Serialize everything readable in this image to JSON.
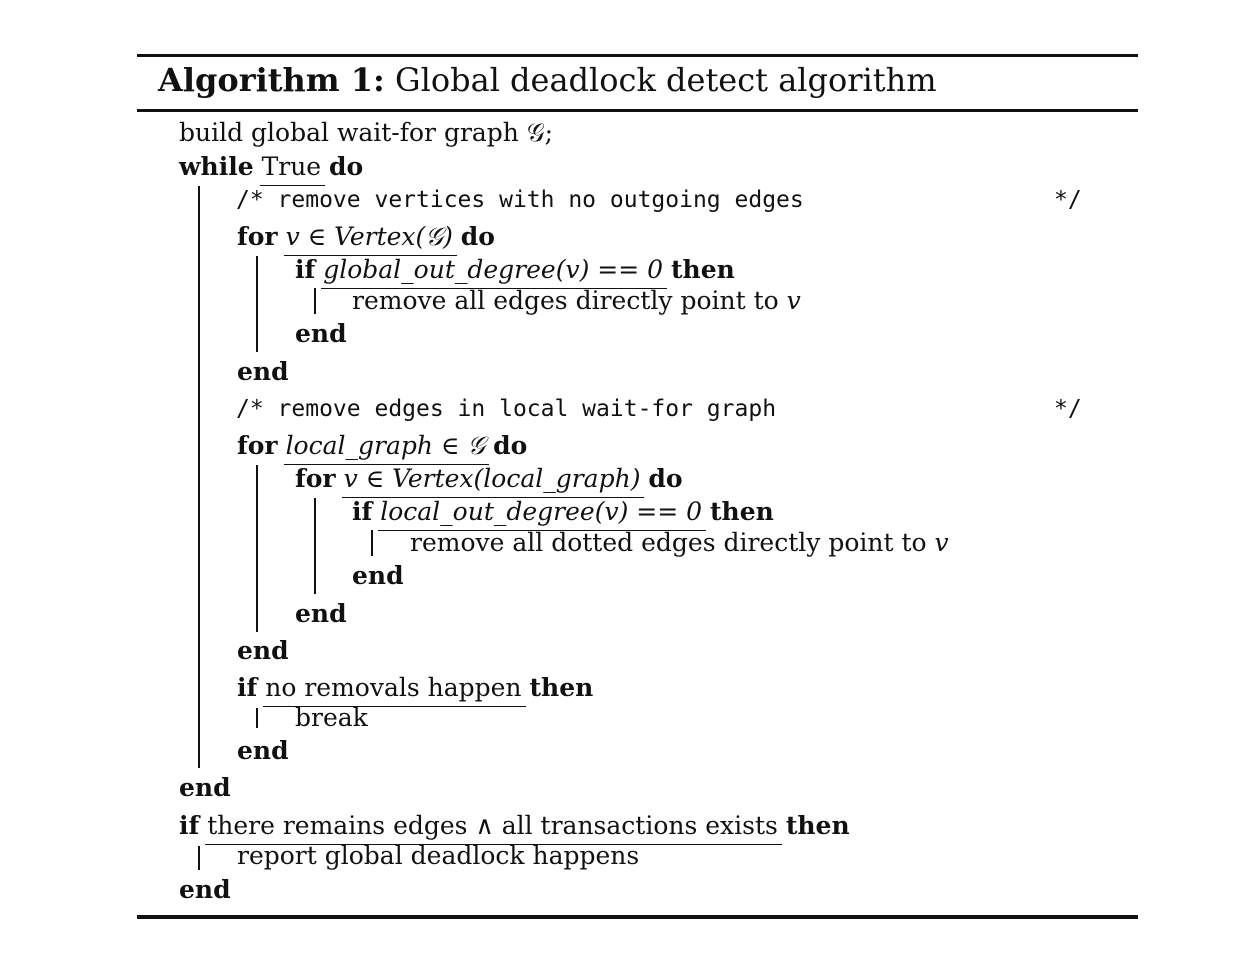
{
  "algorithm": {
    "label": "Algorithm 1:",
    "title": "Global deadlock detect algorithm",
    "lines": {
      "l1": "build global wait-for graph 𝒢;",
      "while_kw": "while",
      "while_cond": "True",
      "while_do": "do",
      "comment1": "/* remove vertices with no outgoing edges",
      "comment1_end": "*/",
      "for1_kw": "for",
      "for1_cond": "v ∈ Vertex(𝒢)",
      "for1_do": "do",
      "if1_kw": "if",
      "if1_cond": "global_out_degree(v) == 0",
      "if1_then": "then",
      "stmt1": "remove all edges directly point to ",
      "stmt1_var": "v",
      "end_if1": "end",
      "end_for1": "end",
      "comment2": "/* remove edges in local wait-for graph",
      "comment2_end": "*/",
      "for2_kw": "for",
      "for2_cond": "local_graph ∈ 𝒢",
      "for2_do": "do",
      "for3_kw": "for",
      "for3_cond": "v ∈ Vertex(local_graph)",
      "for3_do": "do",
      "if2_kw": "if",
      "if2_cond": "local_out_degree(v) == 0",
      "if2_then": "then",
      "stmt2": "remove all dotted edges directly point to ",
      "stmt2_var": "v",
      "end_if2": "end",
      "end_for3": "end",
      "end_for2": "end",
      "if3_kw": "if",
      "if3_cond": "no removals happen",
      "if3_then": "then",
      "break_stmt": "break",
      "end_if3": "end",
      "end_while": "end",
      "if4_kw": "if",
      "if4_cond": "there remains edges ∧ all transactions exists",
      "if4_then": "then",
      "report_stmt": "report global deadlock happens",
      "end_if4": "end"
    }
  }
}
